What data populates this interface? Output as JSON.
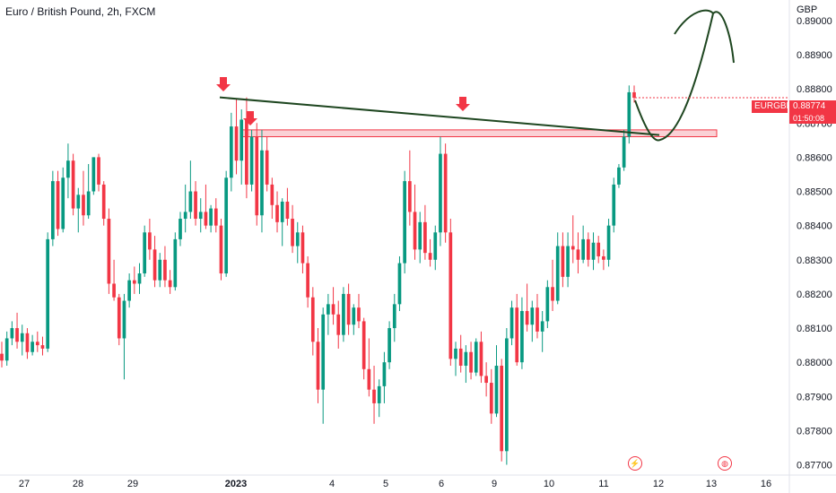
{
  "header": {
    "title": "Euro / British Pound, 2h, FXCM",
    "currency": "GBP"
  },
  "price_label": {
    "symbol": "EURGBP",
    "price": "0.88774",
    "countdown": "01:50:08"
  },
  "colors": {
    "up": "#089981",
    "down": "#f23645",
    "zone": "#f5a3ab",
    "trend": "#1e4620"
  },
  "chart_data": {
    "type": "candlestick",
    "y_axis": {
      "ticks": [
        "0.89000",
        "0.88900",
        "0.88800",
        "0.88700",
        "0.88600",
        "0.88500",
        "0.88400",
        "0.88300",
        "0.88200",
        "0.88100",
        "0.88000",
        "0.87900",
        "0.87800",
        "0.87700"
      ],
      "range": [
        0.8767,
        0.8906
      ]
    },
    "x_axis": {
      "ticks": [
        "27",
        "28",
        "29",
        "2023",
        "4",
        "5",
        "6",
        "9",
        "10",
        "11",
        "12",
        "13",
        "16"
      ]
    },
    "annotations": {
      "resistance_zone": [
        0.8866,
        0.8868
      ],
      "trendline": [
        {
          "x": "30 Dec",
          "y": 0.88775
        },
        {
          "x": "11 Jan",
          "y": 0.88665
        }
      ],
      "arrows": 3,
      "projection": "curve"
    },
    "series": [
      [
        0.88025,
        0.8806,
        0.87985,
        0.88005
      ],
      [
        0.88005,
        0.8809,
        0.8799,
        0.8807
      ],
      [
        0.8807,
        0.8812,
        0.8805,
        0.881
      ],
      [
        0.881,
        0.88145,
        0.8804,
        0.8806
      ],
      [
        0.8806,
        0.8811,
        0.8802,
        0.88085
      ],
      [
        0.88085,
        0.881,
        0.8801,
        0.8803
      ],
      [
        0.8803,
        0.8808,
        0.8802,
        0.8806
      ],
      [
        0.8806,
        0.8809,
        0.8803,
        0.8805
      ],
      [
        0.8805,
        0.88075,
        0.8802,
        0.8804
      ],
      [
        0.8804,
        0.8838,
        0.8803,
        0.8836
      ],
      [
        0.8836,
        0.8856,
        0.8834,
        0.8853
      ],
      [
        0.8853,
        0.8856,
        0.8837,
        0.8839
      ],
      [
        0.8839,
        0.8857,
        0.8838,
        0.8854
      ],
      [
        0.8854,
        0.8864,
        0.8848,
        0.8859
      ],
      [
        0.8859,
        0.8861,
        0.8843,
        0.8845
      ],
      [
        0.8845,
        0.8851,
        0.8838,
        0.8849
      ],
      [
        0.8849,
        0.8856,
        0.884,
        0.8843
      ],
      [
        0.8843,
        0.8858,
        0.8842,
        0.885
      ],
      [
        0.885,
        0.886,
        0.8849,
        0.886
      ],
      [
        0.886,
        0.8861,
        0.885,
        0.8852
      ],
      [
        0.8852,
        0.8853,
        0.884,
        0.8842
      ],
      [
        0.8842,
        0.8845,
        0.882,
        0.8823
      ],
      [
        0.8823,
        0.883,
        0.8818,
        0.8819
      ],
      [
        0.8819,
        0.882,
        0.8805,
        0.8807
      ],
      [
        0.8807,
        0.882,
        0.8795,
        0.8818
      ],
      [
        0.8818,
        0.8826,
        0.8816,
        0.8824
      ],
      [
        0.8824,
        0.8828,
        0.882,
        0.8823
      ],
      [
        0.8823,
        0.8829,
        0.882,
        0.8826
      ],
      [
        0.8826,
        0.884,
        0.8825,
        0.8838
      ],
      [
        0.8838,
        0.8842,
        0.883,
        0.8833
      ],
      [
        0.8833,
        0.8837,
        0.8822,
        0.8824
      ],
      [
        0.8824,
        0.8832,
        0.8822,
        0.883
      ],
      [
        0.883,
        0.8834,
        0.8822,
        0.8824
      ],
      [
        0.8824,
        0.8827,
        0.882,
        0.8822
      ],
      [
        0.8822,
        0.8838,
        0.8821,
        0.8836
      ],
      [
        0.8836,
        0.8844,
        0.8834,
        0.8842
      ],
      [
        0.8842,
        0.8852,
        0.8838,
        0.8844
      ],
      [
        0.8844,
        0.8859,
        0.8842,
        0.885
      ],
      [
        0.885,
        0.8853,
        0.884,
        0.8842
      ],
      [
        0.8842,
        0.8848,
        0.8838,
        0.8844
      ],
      [
        0.8844,
        0.8852,
        0.8839,
        0.884
      ],
      [
        0.884,
        0.8846,
        0.8838,
        0.8845
      ],
      [
        0.8845,
        0.8848,
        0.8838,
        0.884
      ],
      [
        0.884,
        0.8842,
        0.8824,
        0.8826
      ],
      [
        0.8826,
        0.8856,
        0.8825,
        0.8854
      ],
      [
        0.8854,
        0.8873,
        0.885,
        0.8869
      ],
      [
        0.8869,
        0.8877,
        0.8855,
        0.8859
      ],
      [
        0.8859,
        0.8874,
        0.8852,
        0.8871
      ],
      [
        0.8871,
        0.88775,
        0.8848,
        0.8852
      ],
      [
        0.8852,
        0.8868,
        0.885,
        0.8866
      ],
      [
        0.8866,
        0.887,
        0.884,
        0.8843
      ],
      [
        0.8843,
        0.8868,
        0.8838,
        0.8862
      ],
      [
        0.8862,
        0.8866,
        0.885,
        0.8852
      ],
      [
        0.8852,
        0.8854,
        0.8842,
        0.8846
      ],
      [
        0.8846,
        0.885,
        0.8838,
        0.8841
      ],
      [
        0.8841,
        0.8848,
        0.8834,
        0.8847
      ],
      [
        0.8847,
        0.8851,
        0.884,
        0.8842
      ],
      [
        0.8842,
        0.8846,
        0.8832,
        0.8834
      ],
      [
        0.8834,
        0.8841,
        0.8829,
        0.8838
      ],
      [
        0.8838,
        0.884,
        0.8826,
        0.8829
      ],
      [
        0.8829,
        0.8831,
        0.8816,
        0.8819
      ],
      [
        0.8819,
        0.8822,
        0.8802,
        0.8806
      ],
      [
        0.8806,
        0.881,
        0.8788,
        0.8792
      ],
      [
        0.8792,
        0.8816,
        0.8782,
        0.8814
      ],
      [
        0.8814,
        0.882,
        0.8808,
        0.8817
      ],
      [
        0.8817,
        0.8822,
        0.8811,
        0.8814
      ],
      [
        0.8814,
        0.8818,
        0.8804,
        0.8808
      ],
      [
        0.8808,
        0.8822,
        0.8806,
        0.882
      ],
      [
        0.882,
        0.8823,
        0.8808,
        0.8811
      ],
      [
        0.8811,
        0.8817,
        0.8808,
        0.8816
      ],
      [
        0.8816,
        0.882,
        0.881,
        0.8812
      ],
      [
        0.8812,
        0.8813,
        0.8795,
        0.8798
      ],
      [
        0.8798,
        0.8807,
        0.879,
        0.8792
      ],
      [
        0.8792,
        0.8799,
        0.8782,
        0.8788
      ],
      [
        0.8788,
        0.8795,
        0.8784,
        0.8793
      ],
      [
        0.8793,
        0.8803,
        0.8788,
        0.88
      ],
      [
        0.88,
        0.8812,
        0.8798,
        0.881
      ],
      [
        0.881,
        0.882,
        0.8806,
        0.8817
      ],
      [
        0.8817,
        0.8831,
        0.8815,
        0.8829
      ],
      [
        0.8829,
        0.8856,
        0.8826,
        0.8853
      ],
      [
        0.8853,
        0.8862,
        0.884,
        0.8844
      ],
      [
        0.8844,
        0.8852,
        0.883,
        0.8833
      ],
      [
        0.8833,
        0.8844,
        0.8829,
        0.8841
      ],
      [
        0.8841,
        0.8846,
        0.883,
        0.8832
      ],
      [
        0.8832,
        0.8836,
        0.8828,
        0.883
      ],
      [
        0.883,
        0.884,
        0.8827,
        0.8838
      ],
      [
        0.8838,
        0.8866,
        0.8834,
        0.8861
      ],
      [
        0.8861,
        0.8864,
        0.8835,
        0.8838
      ],
      [
        0.8838,
        0.8842,
        0.8799,
        0.8801
      ],
      [
        0.8801,
        0.8806,
        0.8796,
        0.8804
      ],
      [
        0.8804,
        0.8808,
        0.8797,
        0.8799
      ],
      [
        0.8799,
        0.8805,
        0.8794,
        0.8803
      ],
      [
        0.8803,
        0.8806,
        0.8795,
        0.8797
      ],
      [
        0.8797,
        0.8807,
        0.8796,
        0.8806
      ],
      [
        0.8806,
        0.8809,
        0.8794,
        0.8796
      ],
      [
        0.8796,
        0.88,
        0.879,
        0.8794
      ],
      [
        0.8794,
        0.8798,
        0.8782,
        0.8785
      ],
      [
        0.8785,
        0.8805,
        0.8784,
        0.8799
      ],
      [
        0.8799,
        0.8801,
        0.8771,
        0.8774
      ],
      [
        0.8774,
        0.881,
        0.877,
        0.8807
      ],
      [
        0.8807,
        0.8818,
        0.8805,
        0.8816
      ],
      [
        0.8816,
        0.882,
        0.8799,
        0.88
      ],
      [
        0.88,
        0.8819,
        0.8798,
        0.8815
      ],
      [
        0.8815,
        0.8823,
        0.8809,
        0.8811
      ],
      [
        0.8811,
        0.8818,
        0.8806,
        0.8816
      ],
      [
        0.8816,
        0.882,
        0.8807,
        0.8809
      ],
      [
        0.8809,
        0.8815,
        0.8803,
        0.8812
      ],
      [
        0.8812,
        0.8824,
        0.881,
        0.8822
      ],
      [
        0.8822,
        0.883,
        0.8815,
        0.8818
      ],
      [
        0.8818,
        0.8838,
        0.8817,
        0.8834
      ],
      [
        0.8834,
        0.8838,
        0.8822,
        0.8825
      ],
      [
        0.8825,
        0.8838,
        0.8822,
        0.8834
      ],
      [
        0.8834,
        0.8843,
        0.8829,
        0.8833
      ],
      [
        0.8833,
        0.8838,
        0.8826,
        0.883
      ],
      [
        0.883,
        0.884,
        0.8829,
        0.8836
      ],
      [
        0.8836,
        0.8838,
        0.8828,
        0.883
      ],
      [
        0.883,
        0.8838,
        0.8827,
        0.8835
      ],
      [
        0.8835,
        0.8837,
        0.8829,
        0.8831
      ],
      [
        0.8831,
        0.8833,
        0.8827,
        0.883
      ],
      [
        0.883,
        0.8842,
        0.8828,
        0.884
      ],
      [
        0.884,
        0.8854,
        0.8838,
        0.8852
      ],
      [
        0.8852,
        0.8858,
        0.8851,
        0.8857
      ],
      [
        0.8857,
        0.8868,
        0.8856,
        0.8866
      ],
      [
        0.8866,
        0.8881,
        0.8864,
        0.8879
      ],
      [
        0.8879,
        0.8881,
        0.8876,
        0.88774
      ]
    ]
  }
}
